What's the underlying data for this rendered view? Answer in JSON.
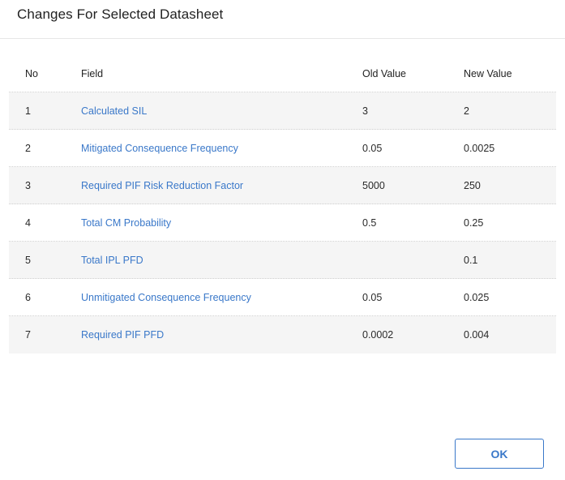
{
  "dialog": {
    "title": "Changes For Selected Datasheet",
    "ok_label": "OK"
  },
  "table": {
    "headers": {
      "no": "No",
      "field": "Field",
      "old": "Old Value",
      "new": "New Value"
    },
    "rows": [
      {
        "no": "1",
        "field": "Calculated SIL",
        "old": "3",
        "new": "2"
      },
      {
        "no": "2",
        "field": "Mitigated Consequence Frequency",
        "old": "0.05",
        "new": "0.0025"
      },
      {
        "no": "3",
        "field": "Required PIF Risk Reduction Factor",
        "old": "5000",
        "new": "250"
      },
      {
        "no": "4",
        "field": "Total CM Probability",
        "old": "0.5",
        "new": "0.25"
      },
      {
        "no": "5",
        "field": "Total IPL PFD",
        "old": "",
        "new": "0.1"
      },
      {
        "no": "6",
        "field": "Unmitigated Consequence Frequency",
        "old": "0.05",
        "new": "0.025"
      },
      {
        "no": "7",
        "field": "Required PIF PFD",
        "old": "0.0002",
        "new": "0.004"
      }
    ]
  },
  "colors": {
    "link": "#3a78c9",
    "row_alt": "#f5f5f5"
  }
}
